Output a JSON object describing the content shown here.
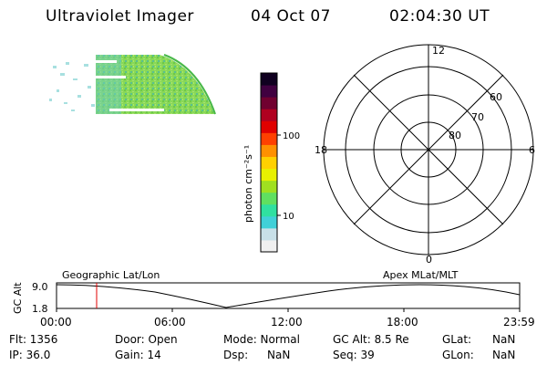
{
  "header": {
    "instrument": "Ultraviolet Imager",
    "date": "04 Oct 07",
    "time": "02:04:30 UT"
  },
  "colorbar": {
    "label": "photon cm⁻²s⁻¹",
    "ticks": [
      "100",
      "10"
    ],
    "colors": [
      "#f0f0f0",
      "#c8e0e8",
      "#40d0d8",
      "#30e0a0",
      "#60e060",
      "#a0e020",
      "#e8f000",
      "#ffd000",
      "#ff9000",
      "#ff4000",
      "#e00000",
      "#b00020",
      "#700030",
      "#400040",
      "#100020"
    ]
  },
  "polar": {
    "mlt_labels": {
      "top": "12",
      "left": "18",
      "right": "6",
      "bottom": "0"
    },
    "lat_labels": [
      "60",
      "70",
      "80"
    ]
  },
  "track": {
    "left_title": "Geographic Lat/Lon",
    "right_title": "Apex  MLat/MLT",
    "ylabel": "GC Alt",
    "yticks": [
      "9.0",
      "1.8"
    ],
    "xticks": [
      "00:00",
      "06:00",
      "12:00",
      "18:00",
      "23:59"
    ],
    "marker_time_hours": 2.075
  },
  "footer": {
    "flt": "Flt: 1356",
    "ip": "IP: 36.0",
    "door": "Door: Open",
    "gain": "Gain: 14",
    "mode": "Mode: Normal",
    "dsp": "Dsp:",
    "dsp_val": "NaN",
    "gcalt": "GC Alt: 8.5 Re",
    "seq": "Seq: 39",
    "glat": "GLat:",
    "glat_val": "NaN",
    "glon": "GLon:",
    "glon_val": "NaN"
  }
}
